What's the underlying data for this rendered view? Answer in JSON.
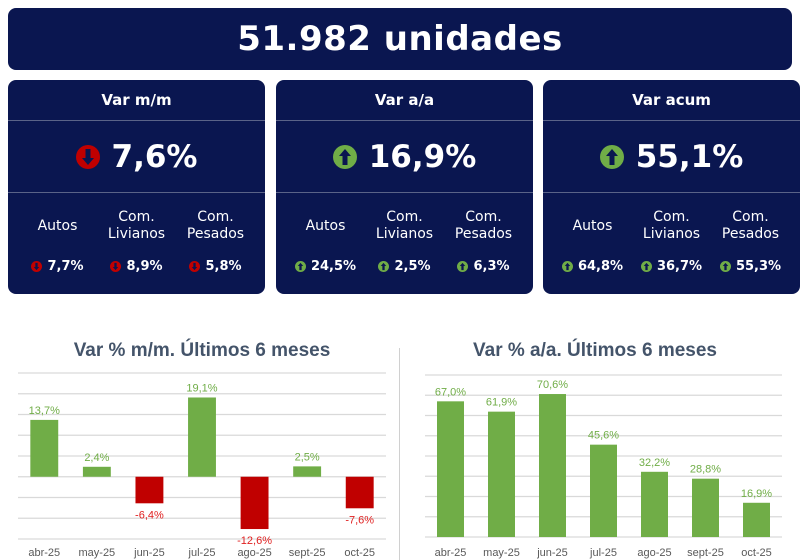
{
  "header": {
    "total": "51.982 unidades"
  },
  "cards": [
    {
      "title": "Var m/m",
      "value": "7,6%",
      "direction": "down",
      "subs": [
        {
          "label1": "Autos",
          "label2": "",
          "value": "7,7%",
          "direction": "down"
        },
        {
          "label1": "Com.",
          "label2": "Livianos",
          "value": "8,9%",
          "direction": "down"
        },
        {
          "label1": "Com.",
          "label2": "Pesados",
          "value": "5,8%",
          "direction": "down"
        }
      ]
    },
    {
      "title": "Var a/a",
      "value": "16,9%",
      "direction": "up",
      "subs": [
        {
          "label1": "Autos",
          "label2": "",
          "value": "24,5%",
          "direction": "up"
        },
        {
          "label1": "Com.",
          "label2": "Livianos",
          "value": "2,5%",
          "direction": "up"
        },
        {
          "label1": "Com.",
          "label2": "Pesados",
          "value": "6,3%",
          "direction": "up"
        }
      ]
    },
    {
      "title": "Var acum",
      "value": "55,1%",
      "direction": "up",
      "subs": [
        {
          "label1": "Autos",
          "label2": "",
          "value": "64,8%",
          "direction": "up"
        },
        {
          "label1": "Com.",
          "label2": "Livianos",
          "value": "36,7%",
          "direction": "up"
        },
        {
          "label1": "Com.",
          "label2": "Pesados",
          "value": "55,3%",
          "direction": "up"
        }
      ]
    }
  ],
  "colors": {
    "navy": "#0a1650",
    "up": "#70ad47",
    "down": "#c00000",
    "up_label": "#70ad47",
    "down_label": "#e02020"
  },
  "chart_data": [
    {
      "type": "bar",
      "title": "Var % m/m. Últimos 6 meses",
      "categories": [
        "abr-25",
        "may-25",
        "jun-25",
        "jul-25",
        "ago-25",
        "sept-25",
        "oct-25"
      ],
      "values": [
        13.7,
        2.4,
        -6.4,
        19.1,
        -12.6,
        2.5,
        -7.6
      ],
      "labels": [
        "13,7%",
        "2,4%",
        "-6,4%",
        "19,1%",
        "-12,6%",
        "2,5%",
        "-7,6%"
      ],
      "ylim": [
        -15,
        25
      ],
      "grid_step": 5,
      "grid": true
    },
    {
      "type": "bar",
      "title": "Var % a/a. Últimos 6 meses",
      "categories": [
        "abr-25",
        "may-25",
        "jun-25",
        "jul-25",
        "ago-25",
        "sept-25",
        "oct-25"
      ],
      "values": [
        67.0,
        61.9,
        70.6,
        45.6,
        32.2,
        28.8,
        16.9
      ],
      "labels": [
        "67,0%",
        "61,9%",
        "70,6%",
        "45,6%",
        "32,2%",
        "28,8%",
        "16,9%"
      ],
      "ylim": [
        0,
        80
      ],
      "grid_step": 10,
      "grid": true
    }
  ]
}
